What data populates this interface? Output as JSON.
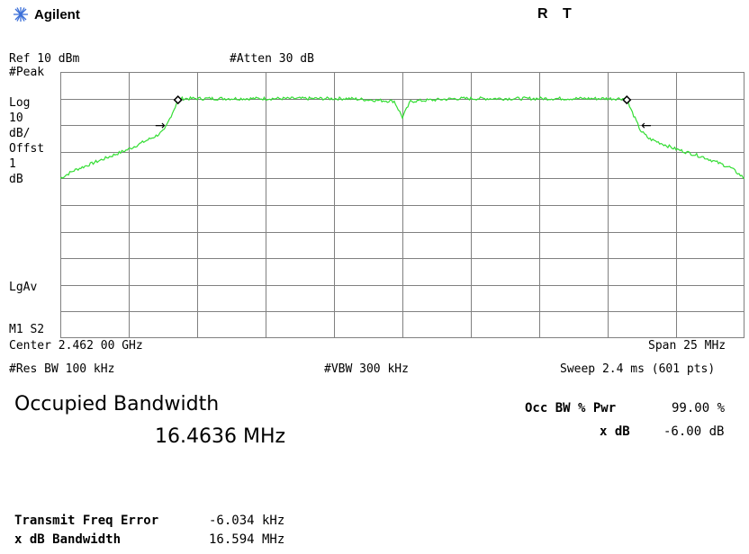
{
  "header": {
    "brand": "Agilent",
    "status_r": "R",
    "status_t": "T"
  },
  "top_annotations": {
    "ref_level": "Ref 10 dBm",
    "attenuation": "#Atten 30 dB"
  },
  "left_annotations": {
    "detector": "#Peak",
    "scale_type": "Log",
    "scale_value": "10",
    "scale_unit": "dB/",
    "offset_label": "Offst",
    "offset_value": "1",
    "offset_unit": "dB",
    "average_type": "LgAv",
    "marker_labels": "M1  S2"
  },
  "bottom_annotations": {
    "center": "Center 2.462 00 GHz",
    "span": "Span 25 MHz",
    "rbw": "#Res BW 100 kHz",
    "vbw": "#VBW 300 kHz",
    "sweep": "Sweep 2.4 ms (601 pts)"
  },
  "results": {
    "title": "Occupied Bandwidth",
    "occupied_bw": "16.4636 MHz",
    "occ_bw_pct_label": "Occ BW % Pwr",
    "occ_bw_pct_value": "99.00 %",
    "x_db_label": "x dB",
    "x_db_value": "-6.00 dB",
    "freq_error_label": "Transmit Freq Error",
    "freq_error_value": "-6.034 kHz",
    "x_db_bw_label": "x dB Bandwidth",
    "x_db_bw_value": "16.594 MHz"
  },
  "colors": {
    "trace": "#33dd33",
    "grid": "#808080",
    "brand_star": "#3b6fd8"
  },
  "chart_data": {
    "type": "line",
    "x_center_ghz": 2.462,
    "span_mhz": 25,
    "ylim_dbm": [
      -90,
      10
    ],
    "grid": true,
    "series": [
      {
        "x_mhz": [
          -12.5,
          -12.0,
          -11.0,
          -10.0,
          -9.0,
          -8.7,
          -8.3,
          -8.2,
          -6.0,
          -2.0,
          -0.3,
          0.0,
          0.3,
          2.0,
          6.0,
          8.2,
          8.3,
          8.7,
          9.0,
          10.0,
          11.0,
          12.0,
          12.5
        ],
        "y_dbm": [
          -30,
          -27,
          -23,
          -19,
          -14,
          -12,
          -3,
          0,
          0,
          0,
          -1,
          -7,
          -1,
          0,
          0,
          0,
          -3,
          -12,
          -15,
          -19,
          -22,
          -26,
          -30
        ]
      }
    ],
    "markers": [
      {
        "x_mhz": -8.2,
        "y_dbm": -0.5
      },
      {
        "x_mhz": 8.2,
        "y_dbm": -0.5
      }
    ]
  }
}
